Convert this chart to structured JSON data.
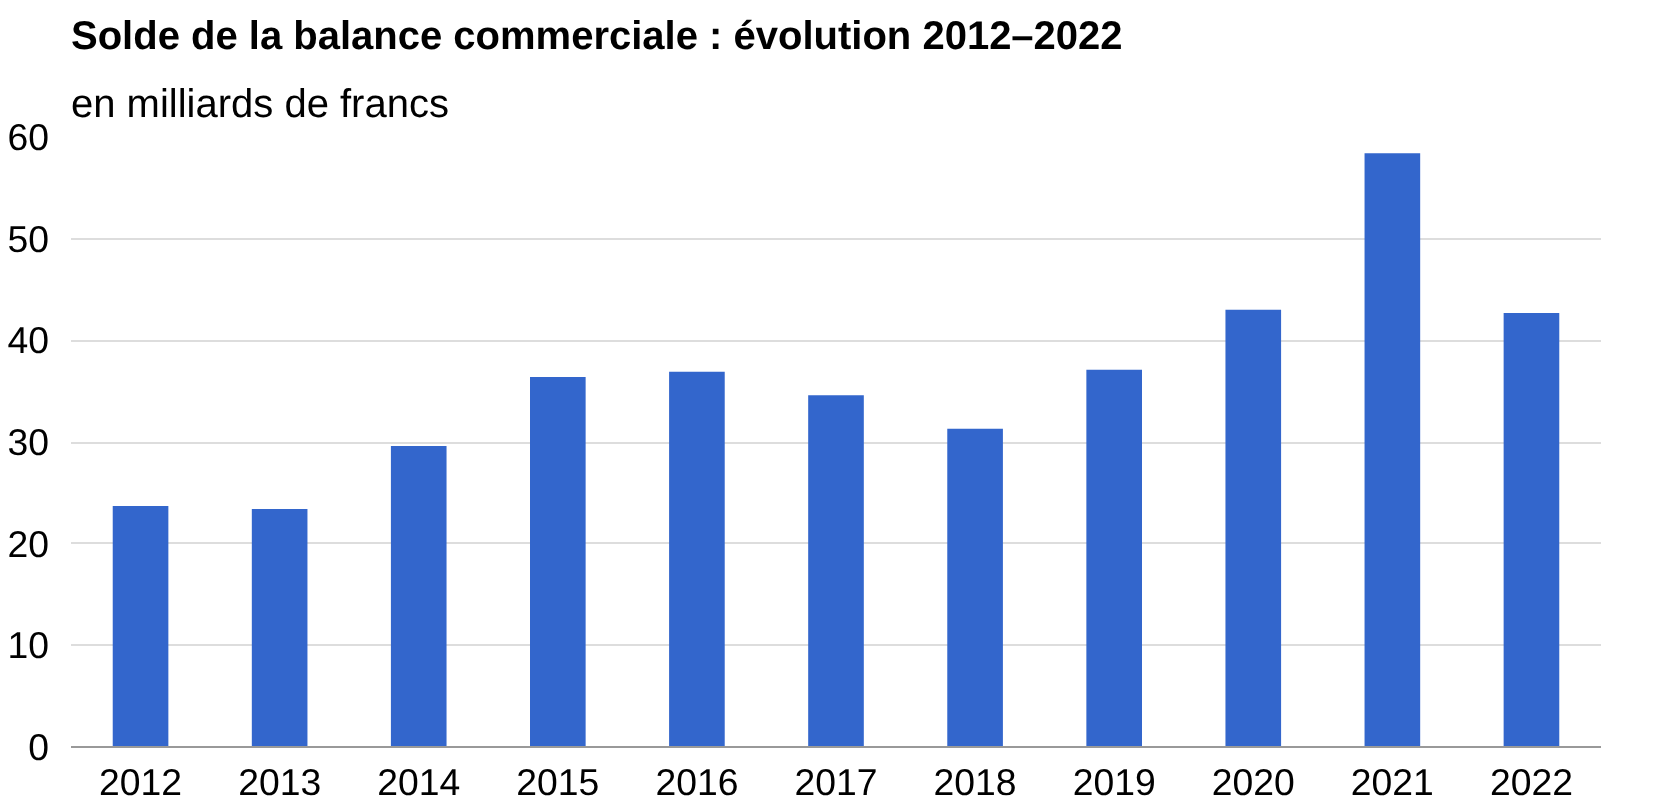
{
  "chart_data": {
    "type": "bar",
    "title": "Solde de la balance commerciale : évolution 2012–2022",
    "subtitle": "en milliards de francs",
    "categories": [
      "2012",
      "2013",
      "2014",
      "2015",
      "2016",
      "2017",
      "2018",
      "2019",
      "2020",
      "2021",
      "2022"
    ],
    "values": [
      23.7,
      23.4,
      29.6,
      36.4,
      36.9,
      34.6,
      31.3,
      37.1,
      43.0,
      58.4,
      42.7
    ],
    "color": "#3366cc",
    "ylim": [
      0,
      60
    ],
    "yticks": [
      0,
      10,
      20,
      30,
      40,
      50,
      60
    ],
    "grid": "y"
  }
}
